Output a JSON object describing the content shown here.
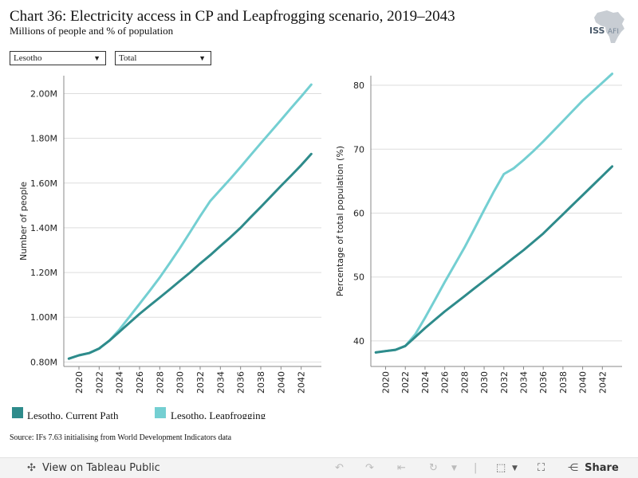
{
  "header": {
    "title": "Chart 36: Electricity access in CP and Leapfrogging scenario, 2019–2043",
    "subtitle": "Millions of people and % of population",
    "logo_text": "ISS",
    "logo_suffix": "AFI"
  },
  "filters": {
    "country": "Lesotho",
    "category": "Total"
  },
  "colors": {
    "current_path": "#2e8b8b",
    "leapfrogging": "#74cfd2",
    "grid": "#dddddd",
    "axis": "#888888"
  },
  "chart_data": [
    {
      "type": "line",
      "ylabel": "Number of people",
      "ylim": [
        0.78,
        2.08
      ],
      "yticks": [
        0.8,
        1.0,
        1.2,
        1.4,
        1.6,
        1.8,
        2.0
      ],
      "ytick_labels": [
        "0.80M",
        "1.00M",
        "1.20M",
        "1.40M",
        "1.60M",
        "1.80M",
        "2.00M"
      ],
      "xlim": [
        2018.5,
        2044
      ],
      "xticks": [
        "2020",
        "2022",
        "2024",
        "2026",
        "2028",
        "2030",
        "2032",
        "2034",
        "2036",
        "2038",
        "2040",
        "2042"
      ],
      "x": [
        2019,
        2020,
        2021,
        2022,
        2023,
        2024,
        2025,
        2026,
        2027,
        2028,
        2029,
        2030,
        2031,
        2032,
        2033,
        2034,
        2035,
        2036,
        2037,
        2038,
        2039,
        2040,
        2041,
        2042,
        2043
      ],
      "series": [
        {
          "name": "Lesotho, Current Path",
          "values": [
            0.815,
            0.83,
            0.84,
            0.86,
            0.895,
            0.935,
            0.975,
            1.015,
            1.052,
            1.088,
            1.125,
            1.163,
            1.2,
            1.24,
            1.278,
            1.318,
            1.358,
            1.4,
            1.447,
            1.493,
            1.54,
            1.587,
            1.633,
            1.68,
            1.73
          ]
        },
        {
          "name": "Lesotho, Leapfrogging",
          "values": [
            0.815,
            0.83,
            0.84,
            0.86,
            0.895,
            0.945,
            1.002,
            1.06,
            1.118,
            1.178,
            1.243,
            1.31,
            1.38,
            1.452,
            1.52,
            1.57,
            1.62,
            1.672,
            1.725,
            1.778,
            1.83,
            1.882,
            1.935,
            1.987,
            2.04
          ]
        }
      ]
    },
    {
      "type": "line",
      "ylabel": "Percentage of total population (%)",
      "ylim": [
        36,
        81.5
      ],
      "yticks": [
        40,
        50,
        60,
        70,
        80
      ],
      "ytick_labels": [
        "40",
        "50",
        "60",
        "70",
        "80"
      ],
      "xlim": [
        2018.5,
        2044
      ],
      "xticks": [
        "2020",
        "2022",
        "2024",
        "2026",
        "2028",
        "2030",
        "2032",
        "2034",
        "2036",
        "2038",
        "2040",
        "2042"
      ],
      "x": [
        2019,
        2020,
        2021,
        2022,
        2023,
        2024,
        2025,
        2026,
        2027,
        2028,
        2029,
        2030,
        2031,
        2032,
        2033,
        2034,
        2035,
        2036,
        2037,
        2038,
        2039,
        2040,
        2041,
        2042,
        2043
      ],
      "series": [
        {
          "name": "Lesotho, Current Path",
          "values": [
            38.2,
            38.4,
            38.6,
            39.2,
            40.6,
            42.0,
            43.3,
            44.6,
            45.8,
            47.0,
            48.2,
            49.4,
            50.6,
            51.8,
            53.0,
            54.2,
            55.5,
            56.8,
            58.3,
            59.8,
            61.3,
            62.8,
            64.3,
            65.8,
            67.3
          ]
        },
        {
          "name": "Lesotho, Leapfrogging",
          "values": [
            38.2,
            38.4,
            38.6,
            39.2,
            41.0,
            43.6,
            46.4,
            49.2,
            51.9,
            54.6,
            57.5,
            60.5,
            63.4,
            66.1,
            67.0,
            68.3,
            69.7,
            71.2,
            72.8,
            74.4,
            76.0,
            77.6,
            79.0,
            80.4,
            81.8
          ]
        }
      ]
    }
  ],
  "legend": [
    {
      "label": "Lesotho, Current Path"
    },
    {
      "label": "Lesotho, Leapfrogging"
    }
  ],
  "footer": {
    "source": "Source: IFs 7.63 initialising from World Development Indicators data"
  },
  "toolbar": {
    "view_label": "View on Tableau Public",
    "share_label": "Share"
  }
}
